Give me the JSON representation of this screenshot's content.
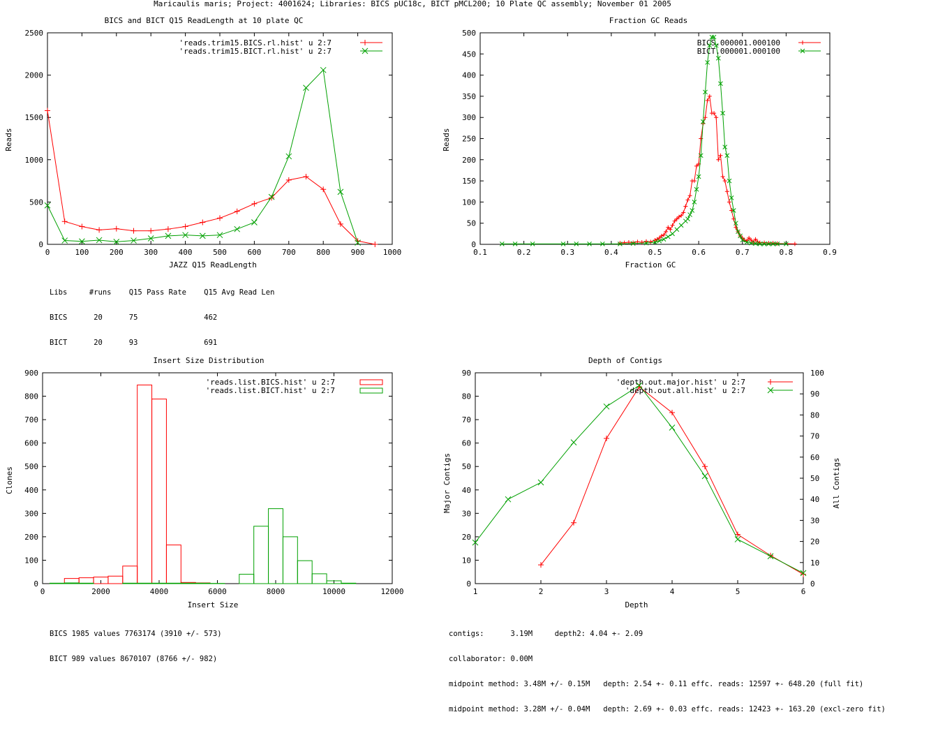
{
  "page_title": "Maricaulis maris; Project: 4001624; Libraries: BICS pUC18c, BICT pMCL200; 10 Plate QC assembly; November 01 2005",
  "colors": {
    "red": "#ff0000",
    "green": "#00a000",
    "axis": "#000000"
  },
  "chart_data": [
    {
      "type": "line",
      "title": "BICS and BICT Q15 ReadLength at 10 plate QC",
      "xlabel": "JAZZ Q15 ReadLength",
      "ylabel": "Reads",
      "xlim": [
        0,
        1000
      ],
      "ylim": [
        0,
        2500
      ],
      "xticks": [
        0,
        100,
        200,
        300,
        400,
        500,
        600,
        700,
        800,
        900,
        1000
      ],
      "yticks": [
        0,
        500,
        1000,
        1500,
        2000,
        2500
      ],
      "marker_size": 4,
      "legend_position": "top-right",
      "series": [
        {
          "name": "'reads.trim15.BICS.rl.hist' u 2:7",
          "color": "#ff0000",
          "marker": "plus",
          "x": [
            0,
            50,
            100,
            150,
            200,
            250,
            300,
            350,
            400,
            450,
            500,
            550,
            600,
            650,
            700,
            750,
            800,
            850,
            900,
            950
          ],
          "y": [
            1580,
            270,
            210,
            170,
            185,
            160,
            160,
            180,
            210,
            260,
            310,
            390,
            480,
            550,
            760,
            800,
            650,
            240,
            40,
            0
          ]
        },
        {
          "name": "'reads.trim15.BICT.rl.hist' u 2:7",
          "color": "#00a000",
          "marker": "cross",
          "x": [
            0,
            50,
            100,
            150,
            200,
            250,
            300,
            350,
            400,
            450,
            500,
            550,
            600,
            650,
            700,
            750,
            800,
            850,
            900
          ],
          "y": [
            460,
            45,
            35,
            50,
            30,
            45,
            70,
            100,
            110,
            100,
            110,
            180,
            260,
            560,
            1040,
            1850,
            2060,
            620,
            20
          ]
        }
      ]
    },
    {
      "type": "line",
      "title": "Fraction GC Reads",
      "xlabel": "Fraction GC",
      "ylabel": "Reads",
      "xlim": [
        0.1,
        0.9
      ],
      "ylim": [
        0,
        500
      ],
      "xticks": [
        0.1,
        0.2,
        0.3,
        0.4,
        0.5,
        0.6,
        0.7,
        0.8,
        0.9
      ],
      "yticks": [
        0,
        50,
        100,
        150,
        200,
        250,
        300,
        350,
        400,
        450,
        500
      ],
      "marker_size": 3,
      "legend_position": "top-right",
      "series": [
        {
          "name": "BICS.000001.000100",
          "color": "#ff0000",
          "marker": "plus",
          "x": [
            0.42,
            0.43,
            0.44,
            0.45,
            0.46,
            0.47,
            0.48,
            0.49,
            0.5,
            0.505,
            0.51,
            0.515,
            0.52,
            0.525,
            0.53,
            0.535,
            0.54,
            0.545,
            0.55,
            0.555,
            0.56,
            0.565,
            0.57,
            0.575,
            0.58,
            0.585,
            0.59,
            0.595,
            0.6,
            0.605,
            0.61,
            0.615,
            0.62,
            0.625,
            0.63,
            0.635,
            0.64,
            0.645,
            0.65,
            0.655,
            0.66,
            0.665,
            0.67,
            0.675,
            0.68,
            0.685,
            0.69,
            0.695,
            0.7,
            0.705,
            0.71,
            0.715,
            0.72,
            0.725,
            0.73,
            0.735,
            0.74,
            0.75,
            0.76,
            0.77,
            0.78,
            0.82
          ],
          "y": [
            3,
            4,
            5,
            4,
            6,
            5,
            7,
            6,
            10,
            12,
            15,
            20,
            22,
            30,
            40,
            35,
            45,
            55,
            60,
            65,
            68,
            75,
            90,
            105,
            115,
            150,
            150,
            185,
            190,
            250,
            285,
            300,
            340,
            350,
            310,
            310,
            300,
            200,
            210,
            160,
            150,
            125,
            100,
            80,
            60,
            40,
            30,
            20,
            15,
            10,
            8,
            15,
            10,
            5,
            12,
            6,
            4,
            4,
            3,
            3,
            2,
            1
          ]
        },
        {
          "name": "BICT.000001.000100",
          "color": "#00a000",
          "marker": "cross",
          "x": [
            0.15,
            0.18,
            0.22,
            0.29,
            0.32,
            0.35,
            0.38,
            0.42,
            0.45,
            0.48,
            0.5,
            0.51,
            0.52,
            0.53,
            0.54,
            0.55,
            0.56,
            0.57,
            0.575,
            0.58,
            0.585,
            0.59,
            0.595,
            0.6,
            0.605,
            0.61,
            0.615,
            0.62,
            0.625,
            0.63,
            0.635,
            0.64,
            0.645,
            0.65,
            0.655,
            0.66,
            0.665,
            0.67,
            0.675,
            0.68,
            0.685,
            0.69,
            0.695,
            0.7,
            0.71,
            0.72,
            0.73,
            0.74,
            0.75,
            0.76,
            0.77,
            0.78,
            0.8
          ],
          "y": [
            1,
            1,
            1,
            1,
            1,
            1,
            1,
            1,
            2,
            3,
            5,
            8,
            12,
            18,
            25,
            35,
            45,
            55,
            60,
            70,
            80,
            100,
            130,
            160,
            210,
            290,
            360,
            430,
            470,
            490,
            490,
            470,
            440,
            380,
            310,
            230,
            210,
            150,
            110,
            80,
            50,
            30,
            20,
            10,
            5,
            3,
            2,
            1,
            1,
            1,
            1,
            1,
            1
          ]
        }
      ]
    },
    {
      "type": "bar",
      "title": "Insert Size Distribution",
      "xlabel": "Insert Size",
      "ylabel": "Clones",
      "xlim": [
        0,
        12000
      ],
      "ylim": [
        0,
        900
      ],
      "xticks": [
        0,
        2000,
        4000,
        6000,
        8000,
        10000,
        12000
      ],
      "yticks": [
        0,
        100,
        200,
        300,
        400,
        500,
        600,
        700,
        800,
        900
      ],
      "bin_width": 500,
      "legend_position": "top-right",
      "series": [
        {
          "name": "'reads.list.BICS.hist' u 2:7",
          "color": "#ff0000",
          "x": [
            500,
            1000,
            1500,
            2000,
            2500,
            3000,
            3500,
            4000,
            4500,
            5000,
            5500
          ],
          "values": [
            1,
            22,
            25,
            28,
            32,
            75,
            848,
            788,
            165,
            5,
            3
          ]
        },
        {
          "name": "'reads.list.BICT.hist' u 2:7",
          "color": "#00a000",
          "x": [
            500,
            1000,
            1500,
            3000,
            3500,
            4000,
            4500,
            5000,
            5500,
            6000,
            7000,
            7500,
            8000,
            8500,
            9000,
            9500,
            10000,
            10500
          ],
          "values": [
            2,
            3,
            2,
            2,
            2,
            2,
            2,
            2,
            2,
            1,
            40,
            245,
            320,
            200,
            98,
            42,
            12,
            2
          ]
        }
      ]
    },
    {
      "type": "line",
      "title": "Depth of Contigs",
      "xlabel": "Depth",
      "ylabel": "Major Contigs",
      "y2label": "All Contigs",
      "xlim": [
        1,
        6
      ],
      "ylim": [
        0,
        90
      ],
      "y2lim": [
        0,
        100
      ],
      "xticks": [
        1,
        2,
        3,
        4,
        5,
        6
      ],
      "yticks": [
        0,
        10,
        20,
        30,
        40,
        50,
        60,
        70,
        80,
        90
      ],
      "y2ticks": [
        0,
        10,
        20,
        30,
        40,
        50,
        60,
        70,
        80,
        90,
        100
      ],
      "marker_size": 4,
      "legend_position": "top-right",
      "series": [
        {
          "name": "'depth.out.major.hist' u 2:7",
          "color": "#ff0000",
          "marker": "plus",
          "axis": "y1",
          "x": [
            2,
            2.5,
            3,
            3.5,
            4,
            4.5,
            5,
            5.5,
            6
          ],
          "y": [
            8,
            26,
            62,
            84,
            73,
            50,
            21,
            12,
            4
          ]
        },
        {
          "name": "'depth.out.all.hist' u 2:7",
          "color": "#00a000",
          "marker": "cross",
          "axis": "y2",
          "x": [
            1,
            1.5,
            2,
            2.5,
            3,
            3.5,
            4,
            4.5,
            5,
            5.5,
            6
          ],
          "y": [
            19.5,
            40,
            48,
            67,
            84,
            94,
            74,
            51,
            21,
            13,
            5
          ]
        }
      ]
    }
  ],
  "stats": {
    "readlength": [
      "Libs     #runs    Q15 Pass Rate    Q15 Avg Read Len",
      "BICS      20      75               462",
      "BICT      20      93               691"
    ],
    "insert": [
      "BICS 1985 values 7763174 (3910 +/- 573)",
      "BICT 989 values 8670107 (8766 +/- 982)"
    ],
    "depth": [
      "contigs:      3.19M     depth2: 4.04 +- 2.09",
      "collaborator: 0.00M",
      "midpoint method: 3.48M +/- 0.15M   depth: 2.54 +- 0.11 effc. reads: 12597 +- 648.20 (full fit)",
      "midpoint method: 3.28M +/- 0.04M   depth: 2.69 +- 0.03 effc. reads: 12423 +- 163.20 (excl-zero fit)"
    ]
  }
}
